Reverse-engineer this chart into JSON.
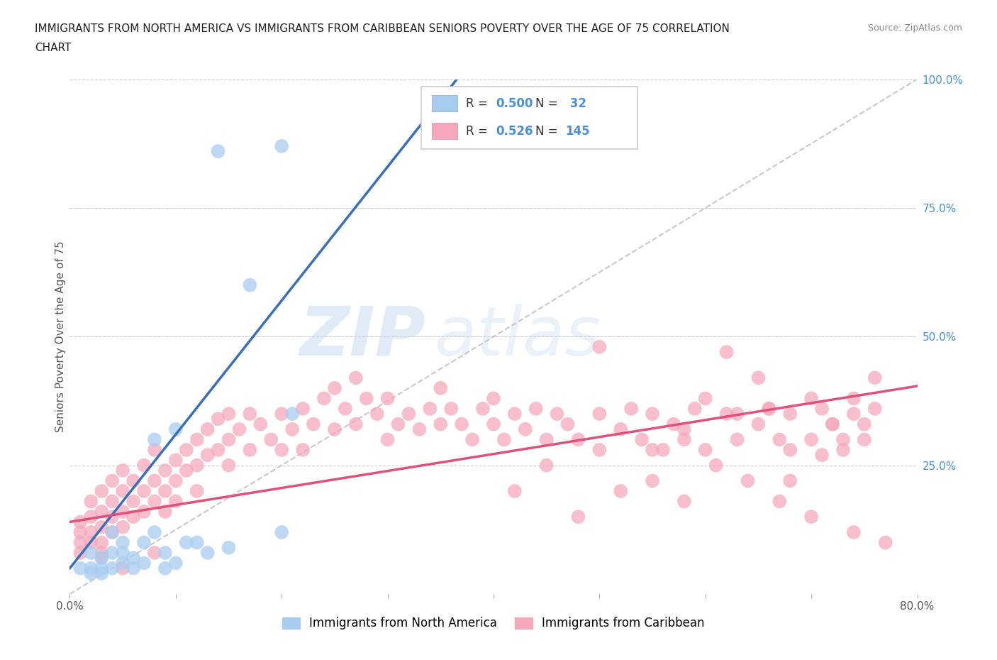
{
  "title_line1": "IMMIGRANTS FROM NORTH AMERICA VS IMMIGRANTS FROM CARIBBEAN SENIORS POVERTY OVER THE AGE OF 75 CORRELATION",
  "title_line2": "CHART",
  "source": "Source: ZipAtlas.com",
  "ylabel": "Seniors Poverty Over the Age of 75",
  "xlim": [
    0.0,
    0.8
  ],
  "ylim": [
    0.0,
    1.0
  ],
  "ytick_right_labels": [
    "",
    "25.0%",
    "50.0%",
    "75.0%",
    "100.0%"
  ],
  "ytick_right_values": [
    0.0,
    0.25,
    0.5,
    0.75,
    1.0
  ],
  "legend_R1": "0.500",
  "legend_N1": " 32",
  "legend_R2": "0.526",
  "legend_N2": "145",
  "legend_label1": "Immigrants from North America",
  "legend_label2": "Immigrants from Caribbean",
  "color_blue": "#A8CCF0",
  "color_blue_line": "#3A6FB5",
  "color_pink": "#F5A8BC",
  "color_pink_line": "#E0507A",
  "color_gray_line": "#BBBBBB",
  "watermark_zip": "ZIP",
  "watermark_atlas": "atlas",
  "background": "#FFFFFF",
  "blue_scatter_x": [
    0.14,
    0.2,
    0.02,
    0.03,
    0.03,
    0.04,
    0.04,
    0.04,
    0.05,
    0.05,
    0.05,
    0.06,
    0.06,
    0.07,
    0.07,
    0.08,
    0.09,
    0.09,
    0.1,
    0.11,
    0.12,
    0.13,
    0.15,
    0.17,
    0.21,
    0.01,
    0.02,
    0.02,
    0.03,
    0.08,
    0.1,
    0.2
  ],
  "blue_scatter_y": [
    0.86,
    0.87,
    0.05,
    0.04,
    0.07,
    0.05,
    0.08,
    0.12,
    0.06,
    0.1,
    0.08,
    0.05,
    0.07,
    0.06,
    0.1,
    0.12,
    0.05,
    0.08,
    0.06,
    0.1,
    0.1,
    0.08,
    0.09,
    0.6,
    0.35,
    0.05,
    0.04,
    0.08,
    0.05,
    0.3,
    0.32,
    0.12
  ],
  "pink_scatter_x": [
    0.01,
    0.01,
    0.01,
    0.01,
    0.02,
    0.02,
    0.02,
    0.02,
    0.03,
    0.03,
    0.03,
    0.03,
    0.03,
    0.04,
    0.04,
    0.04,
    0.04,
    0.05,
    0.05,
    0.05,
    0.05,
    0.06,
    0.06,
    0.06,
    0.07,
    0.07,
    0.07,
    0.08,
    0.08,
    0.08,
    0.09,
    0.09,
    0.09,
    0.1,
    0.1,
    0.1,
    0.11,
    0.11,
    0.12,
    0.12,
    0.12,
    0.13,
    0.13,
    0.14,
    0.14,
    0.15,
    0.15,
    0.15,
    0.16,
    0.17,
    0.17,
    0.18,
    0.19,
    0.2,
    0.2,
    0.21,
    0.22,
    0.22,
    0.23,
    0.24,
    0.25,
    0.25,
    0.26,
    0.27,
    0.27,
    0.28,
    0.29,
    0.3,
    0.3,
    0.31,
    0.32,
    0.33,
    0.34,
    0.35,
    0.35,
    0.36,
    0.37,
    0.38,
    0.39,
    0.4,
    0.4,
    0.41,
    0.42,
    0.43,
    0.44,
    0.45,
    0.46,
    0.47,
    0.48,
    0.5,
    0.5,
    0.52,
    0.53,
    0.54,
    0.55,
    0.56,
    0.57,
    0.58,
    0.59,
    0.6,
    0.62,
    0.63,
    0.65,
    0.66,
    0.67,
    0.68,
    0.7,
    0.71,
    0.72,
    0.73,
    0.74,
    0.75,
    0.76,
    0.62,
    0.65,
    0.68,
    0.7,
    0.72,
    0.74,
    0.76,
    0.5,
    0.55,
    0.58,
    0.6,
    0.63,
    0.66,
    0.68,
    0.71,
    0.73,
    0.75,
    0.42,
    0.45,
    0.48,
    0.52,
    0.55,
    0.58,
    0.61,
    0.64,
    0.67,
    0.7,
    0.74,
    0.77,
    0.03,
    0.05,
    0.08
  ],
  "pink_scatter_y": [
    0.12,
    0.1,
    0.14,
    0.08,
    0.15,
    0.12,
    0.18,
    0.1,
    0.16,
    0.13,
    0.2,
    0.1,
    0.08,
    0.18,
    0.15,
    0.22,
    0.12,
    0.2,
    0.16,
    0.24,
    0.13,
    0.22,
    0.18,
    0.15,
    0.25,
    0.2,
    0.16,
    0.28,
    0.22,
    0.18,
    0.24,
    0.2,
    0.16,
    0.26,
    0.22,
    0.18,
    0.28,
    0.24,
    0.3,
    0.25,
    0.2,
    0.32,
    0.27,
    0.34,
    0.28,
    0.35,
    0.3,
    0.25,
    0.32,
    0.35,
    0.28,
    0.33,
    0.3,
    0.35,
    0.28,
    0.32,
    0.36,
    0.28,
    0.33,
    0.38,
    0.4,
    0.32,
    0.36,
    0.42,
    0.33,
    0.38,
    0.35,
    0.3,
    0.38,
    0.33,
    0.35,
    0.32,
    0.36,
    0.33,
    0.4,
    0.36,
    0.33,
    0.3,
    0.36,
    0.33,
    0.38,
    0.3,
    0.35,
    0.32,
    0.36,
    0.3,
    0.35,
    0.33,
    0.3,
    0.28,
    0.35,
    0.32,
    0.36,
    0.3,
    0.35,
    0.28,
    0.33,
    0.3,
    0.36,
    0.28,
    0.35,
    0.3,
    0.33,
    0.36,
    0.3,
    0.35,
    0.3,
    0.36,
    0.33,
    0.28,
    0.35,
    0.3,
    0.36,
    0.47,
    0.42,
    0.28,
    0.38,
    0.33,
    0.38,
    0.42,
    0.48,
    0.28,
    0.32,
    0.38,
    0.35,
    0.36,
    0.22,
    0.27,
    0.3,
    0.33,
    0.2,
    0.25,
    0.15,
    0.2,
    0.22,
    0.18,
    0.25,
    0.22,
    0.18,
    0.15,
    0.12,
    0.1,
    0.07,
    0.05,
    0.08
  ]
}
